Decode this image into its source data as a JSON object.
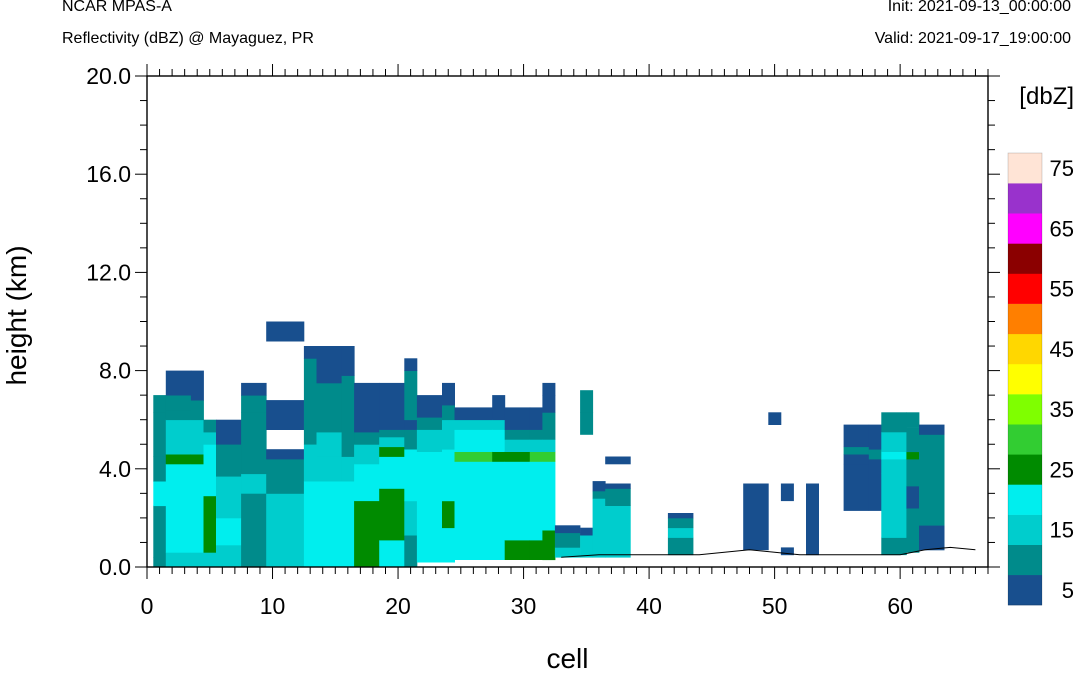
{
  "header": {
    "model": "NCAR MPAS-A",
    "field": "Reflectivity (dBZ) @ Mayaguez, PR",
    "init": "Init: 2021-09-13_00:00:00",
    "valid": "Valid: 2021-09-17_19:00:00"
  },
  "chart_data": {
    "type": "heatmap",
    "xlabel": "cell",
    "ylabel": "height (km)",
    "xlim": [
      0,
      67
    ],
    "ylim": [
      0,
      20
    ],
    "x_ticks": [
      "0",
      "10",
      "20",
      "30",
      "40",
      "50",
      "60"
    ],
    "y_ticks": [
      "0.0",
      "4.0",
      "8.0",
      "12.0",
      "16.0",
      "20.0"
    ],
    "x_tick_values": [
      0,
      10,
      20,
      30,
      40,
      50,
      60
    ],
    "y_tick_values": [
      0,
      4,
      8,
      12,
      16,
      20
    ],
    "colorbar": {
      "label": "[dbZ]",
      "levels": [
        5,
        10,
        15,
        20,
        25,
        30,
        35,
        40,
        45,
        50,
        55,
        60,
        65,
        70,
        75
      ],
      "tick_labels": [
        "5",
        "15",
        "25",
        "35",
        "45",
        "55",
        "65",
        "75"
      ],
      "colors": [
        "#184f8e",
        "#008b8b",
        "#00cdcd",
        "#00eeee",
        "#008b00",
        "#32cd32",
        "#7fff00",
        "#ffff00",
        "#ffd700",
        "#ff7f00",
        "#ff0000",
        "#8b0000",
        "#ff00ff",
        "#9932cc",
        "#ffe4d6"
      ]
    },
    "terrain_km": [
      [
        33,
        0.4
      ],
      [
        36,
        0.5
      ],
      [
        40,
        0.5
      ],
      [
        44,
        0.5
      ],
      [
        46,
        0.6
      ],
      [
        48,
        0.7
      ],
      [
        50,
        0.6
      ],
      [
        52,
        0.5
      ],
      [
        56,
        0.5
      ],
      [
        60,
        0.5
      ],
      [
        62,
        0.7
      ],
      [
        64,
        0.8
      ],
      [
        66,
        0.7
      ]
    ],
    "columns": [
      {
        "x0": 0.5,
        "x1": 1.5,
        "z0": 0,
        "z1": 7,
        "v": [
          [
            0.0,
            10
          ],
          [
            0.4,
            10
          ],
          [
            2.5,
            20
          ],
          [
            3.5,
            10
          ],
          [
            4.5,
            10
          ],
          [
            6.3,
            10
          ],
          [
            7.0,
            null
          ]
        ]
      },
      {
        "x0": 1.5,
        "x1": 3.5,
        "z0": 0,
        "z1": 8,
        "v": [
          [
            0.0,
            15
          ],
          [
            0.6,
            20
          ],
          [
            4.2,
            25
          ],
          [
            4.6,
            15
          ],
          [
            6.0,
            10
          ],
          [
            6.4,
            10
          ],
          [
            7.0,
            5
          ],
          [
            8.0,
            null
          ]
        ]
      },
      {
        "x0": 3.5,
        "x1": 4.5,
        "z0": 0,
        "z1": 8,
        "v": [
          [
            0.0,
            15
          ],
          [
            0.6,
            20
          ],
          [
            4.2,
            25
          ],
          [
            4.6,
            15
          ],
          [
            6.0,
            10
          ],
          [
            6.8,
            5
          ],
          [
            8.0,
            null
          ]
        ]
      },
      {
        "x0": 4.5,
        "x1": 5.5,
        "z0": 0,
        "z1": 6,
        "v": [
          [
            0.0,
            15
          ],
          [
            0.6,
            25
          ],
          [
            2.9,
            20
          ],
          [
            4.2,
            20
          ],
          [
            5.0,
            15
          ],
          [
            5.5,
            10
          ],
          [
            6.0,
            null
          ]
        ]
      },
      {
        "x0": 5.5,
        "x1": 7.5,
        "z0": 0,
        "z1": 6,
        "v": [
          [
            0.0,
            15
          ],
          [
            0.9,
            20
          ],
          [
            2.0,
            15
          ],
          [
            3.7,
            10
          ],
          [
            5.0,
            5
          ],
          [
            6.0,
            null
          ]
        ]
      },
      {
        "x0": 7.5,
        "x1": 9.5,
        "z0": 0,
        "z1": 7.5,
        "v": [
          [
            0.0,
            10
          ],
          [
            3.0,
            15
          ],
          [
            3.8,
            10
          ],
          [
            6.3,
            10
          ],
          [
            7.0,
            5
          ],
          [
            7.5,
            null
          ]
        ]
      },
      {
        "x0": 9.5,
        "x1": 12.5,
        "z0": 0,
        "z1": 10,
        "v": [
          [
            0.0,
            15
          ],
          [
            3.0,
            10
          ],
          [
            4.4,
            5
          ],
          [
            4.8,
            null
          ],
          [
            5.6,
            5
          ],
          [
            6.8,
            null
          ],
          [
            8.0,
            null
          ],
          [
            9.2,
            5
          ],
          [
            10.0,
            null
          ]
        ]
      },
      {
        "x0": 12.5,
        "x1": 13.5,
        "z0": 0,
        "z1": 9,
        "v": [
          [
            0.0,
            20
          ],
          [
            3.5,
            15
          ],
          [
            5.0,
            10
          ],
          [
            8.5,
            5
          ],
          [
            9.0,
            null
          ]
        ]
      },
      {
        "x0": 13.5,
        "x1": 15.5,
        "z0": 0,
        "z1": 9,
        "v": [
          [
            0.0,
            20
          ],
          [
            3.5,
            15
          ],
          [
            4.5,
            15
          ],
          [
            5.5,
            10
          ],
          [
            7.5,
            5
          ],
          [
            8.2,
            5
          ],
          [
            9.0,
            null
          ]
        ]
      },
      {
        "x0": 15.5,
        "x1": 16.5,
        "z0": 0,
        "z1": 9,
        "v": [
          [
            0.0,
            20
          ],
          [
            3.5,
            15
          ],
          [
            4.5,
            10
          ],
          [
            6.5,
            10
          ],
          [
            7.8,
            5
          ],
          [
            9.0,
            null
          ]
        ]
      },
      {
        "x0": 16.5,
        "x1": 18.5,
        "z0": 0,
        "z1": 7.5,
        "v": [
          [
            0.0,
            25
          ],
          [
            2.7,
            20
          ],
          [
            4.2,
            15
          ],
          [
            5.0,
            10
          ],
          [
            5.5,
            5
          ],
          [
            7.5,
            null
          ]
        ]
      },
      {
        "x0": 18.5,
        "x1": 20.5,
        "z0": 0,
        "z1": 7.5,
        "v": [
          [
            0.0,
            20
          ],
          [
            1.1,
            25
          ],
          [
            3.2,
            20
          ],
          [
            4.5,
            25
          ],
          [
            4.9,
            15
          ],
          [
            5.3,
            10
          ],
          [
            5.6,
            5
          ],
          [
            7.5,
            null
          ]
        ]
      },
      {
        "x0": 20.5,
        "x1": 21.5,
        "z0": 0,
        "z1": 8.5,
        "v": [
          [
            0.0,
            10
          ],
          [
            1.3,
            15
          ],
          [
            2.7,
            20
          ],
          [
            4.8,
            10
          ],
          [
            5.6,
            5
          ],
          [
            6.0,
            10
          ],
          [
            8.0,
            5
          ],
          [
            8.5,
            null
          ]
        ]
      },
      {
        "x0": 21.5,
        "x1": 23.5,
        "z0": 0,
        "z1": 7,
        "v": [
          [
            0.0,
            null
          ],
          [
            0.2,
            20
          ],
          [
            4.7,
            15
          ],
          [
            5.6,
            10
          ],
          [
            6.1,
            5
          ],
          [
            7.0,
            null
          ]
        ]
      },
      {
        "x0": 23.5,
        "x1": 24.5,
        "z0": 0,
        "z1": 7.5,
        "v": [
          [
            0.0,
            null
          ],
          [
            0.2,
            20
          ],
          [
            1.6,
            25
          ],
          [
            2.7,
            20
          ],
          [
            4.8,
            15
          ],
          [
            6.0,
            10
          ],
          [
            6.6,
            5
          ],
          [
            7.5,
            null
          ]
        ]
      },
      {
        "x0": 24.5,
        "x1": 27.5,
        "z0": 0,
        "z1": 6.5,
        "v": [
          [
            0.0,
            null
          ],
          [
            0.3,
            20
          ],
          [
            4.3,
            30
          ],
          [
            4.7,
            20
          ],
          [
            5.6,
            15
          ],
          [
            6.0,
            5
          ],
          [
            6.5,
            null
          ]
        ]
      },
      {
        "x0": 27.5,
        "x1": 28.5,
        "z0": 0,
        "z1": 7,
        "v": [
          [
            0.0,
            null
          ],
          [
            0.3,
            20
          ],
          [
            4.3,
            25
          ],
          [
            4.7,
            20
          ],
          [
            5.6,
            15
          ],
          [
            6.0,
            5
          ],
          [
            7.0,
            null
          ]
        ]
      },
      {
        "x0": 28.5,
        "x1": 30.5,
        "z0": 0,
        "z1": 6.5,
        "v": [
          [
            0.0,
            null
          ],
          [
            0.3,
            25
          ],
          [
            1.1,
            20
          ],
          [
            4.3,
            25
          ],
          [
            4.7,
            15
          ],
          [
            5.2,
            10
          ],
          [
            5.6,
            5
          ],
          [
            6.5,
            null
          ]
        ]
      },
      {
        "x0": 30.5,
        "x1": 31.5,
        "z0": 0,
        "z1": 6.5,
        "v": [
          [
            0.0,
            null
          ],
          [
            0.3,
            25
          ],
          [
            1.1,
            20
          ],
          [
            4.3,
            30
          ],
          [
            4.7,
            15
          ],
          [
            5.2,
            10
          ],
          [
            5.6,
            5
          ],
          [
            6.5,
            null
          ]
        ]
      },
      {
        "x0": 31.5,
        "x1": 32.5,
        "z0": 0,
        "z1": 7.5,
        "v": [
          [
            0.0,
            null
          ],
          [
            0.3,
            25
          ],
          [
            1.5,
            20
          ],
          [
            4.3,
            30
          ],
          [
            4.7,
            15
          ],
          [
            5.2,
            10
          ],
          [
            6.3,
            5
          ],
          [
            7.0,
            5
          ],
          [
            7.5,
            null
          ]
        ]
      },
      {
        "x0": 32.5,
        "x1": 34.5,
        "z0": 0,
        "z1": 1.7,
        "v": [
          [
            0.0,
            null
          ],
          [
            0.4,
            15
          ],
          [
            0.8,
            10
          ],
          [
            1.4,
            5
          ],
          [
            1.7,
            null
          ]
        ]
      },
      {
        "x0": 34.5,
        "x1": 35.5,
        "z0": 0,
        "z1": 7.2,
        "v": [
          [
            0.0,
            null
          ],
          [
            0.4,
            15
          ],
          [
            1.3,
            5
          ],
          [
            1.6,
            null
          ],
          [
            5.4,
            10
          ],
          [
            6.3,
            10
          ],
          [
            7.2,
            null
          ]
        ]
      },
      {
        "x0": 35.5,
        "x1": 36.5,
        "z0": 0,
        "z1": 3.5,
        "v": [
          [
            0.0,
            null
          ],
          [
            0.4,
            15
          ],
          [
            2.8,
            10
          ],
          [
            3.1,
            5
          ],
          [
            3.5,
            null
          ]
        ]
      },
      {
        "x0": 36.5,
        "x1": 38.5,
        "z0": 0,
        "z1": 4.5,
        "v": [
          [
            0.0,
            null
          ],
          [
            0.4,
            15
          ],
          [
            2.5,
            10
          ],
          [
            3.2,
            5
          ],
          [
            3.4,
            null
          ],
          [
            4.2,
            5
          ],
          [
            4.5,
            null
          ]
        ]
      },
      {
        "x0": 41.5,
        "x1": 43.5,
        "z0": 0,
        "z1": 2.2,
        "v": [
          [
            0.0,
            null
          ],
          [
            0.5,
            10
          ],
          [
            1.2,
            15
          ],
          [
            1.6,
            10
          ],
          [
            2.0,
            5
          ],
          [
            2.2,
            null
          ]
        ]
      },
      {
        "x0": 47.5,
        "x1": 49.5,
        "z0": 0,
        "z1": 3.4,
        "v": [
          [
            0.0,
            null
          ],
          [
            0.7,
            5
          ],
          [
            3.4,
            null
          ]
        ]
      },
      {
        "x0": 49.5,
        "x1": 50.5,
        "z0": 0,
        "z1": 6.3,
        "v": [
          [
            0.0,
            null
          ],
          [
            5.8,
            5
          ],
          [
            6.3,
            null
          ]
        ]
      },
      {
        "x0": 50.5,
        "x1": 51.5,
        "z0": 0,
        "z1": 3.4,
        "v": [
          [
            0.0,
            null
          ],
          [
            0.5,
            5
          ],
          [
            0.8,
            null
          ],
          [
            2.7,
            5
          ],
          [
            3.4,
            null
          ]
        ]
      },
      {
        "x0": 52.5,
        "x1": 53.5,
        "z0": 0,
        "z1": 3.4,
        "v": [
          [
            0.0,
            null
          ],
          [
            0.5,
            5
          ],
          [
            3.4,
            null
          ]
        ]
      },
      {
        "x0": 55.5,
        "x1": 57.5,
        "z0": 0,
        "z1": 5.8,
        "v": [
          [
            0.0,
            null
          ],
          [
            2.3,
            5
          ],
          [
            4.2,
            5
          ],
          [
            4.6,
            10
          ],
          [
            4.9,
            5
          ],
          [
            5.8,
            null
          ]
        ]
      },
      {
        "x0": 57.5,
        "x1": 58.5,
        "z0": 0,
        "z1": 5.8,
        "v": [
          [
            0.0,
            null
          ],
          [
            2.3,
            5
          ],
          [
            3.6,
            5
          ],
          [
            4.4,
            10
          ],
          [
            4.8,
            5
          ],
          [
            5.8,
            null
          ]
        ]
      },
      {
        "x0": 58.5,
        "x1": 60.5,
        "z0": 0,
        "z1": 6.3,
        "v": [
          [
            0.0,
            null
          ],
          [
            0.5,
            10
          ],
          [
            1.2,
            15
          ],
          [
            3.8,
            15
          ],
          [
            4.4,
            20
          ],
          [
            4.7,
            15
          ],
          [
            5.5,
            10
          ],
          [
            6.3,
            null
          ]
        ]
      },
      {
        "x0": 60.5,
        "x1": 61.5,
        "z0": 0,
        "z1": 6.3,
        "v": [
          [
            0.0,
            null
          ],
          [
            0.6,
            10
          ],
          [
            2.4,
            5
          ],
          [
            3.3,
            10
          ],
          [
            4.4,
            25
          ],
          [
            4.7,
            10
          ],
          [
            5.7,
            10
          ],
          [
            6.3,
            null
          ]
        ]
      },
      {
        "x0": 61.5,
        "x1": 63.5,
        "z0": 0,
        "z1": 5.8,
        "v": [
          [
            0.0,
            null
          ],
          [
            0.7,
            5
          ],
          [
            1.7,
            10
          ],
          [
            5.4,
            5
          ],
          [
            5.8,
            null
          ]
        ]
      }
    ]
  }
}
